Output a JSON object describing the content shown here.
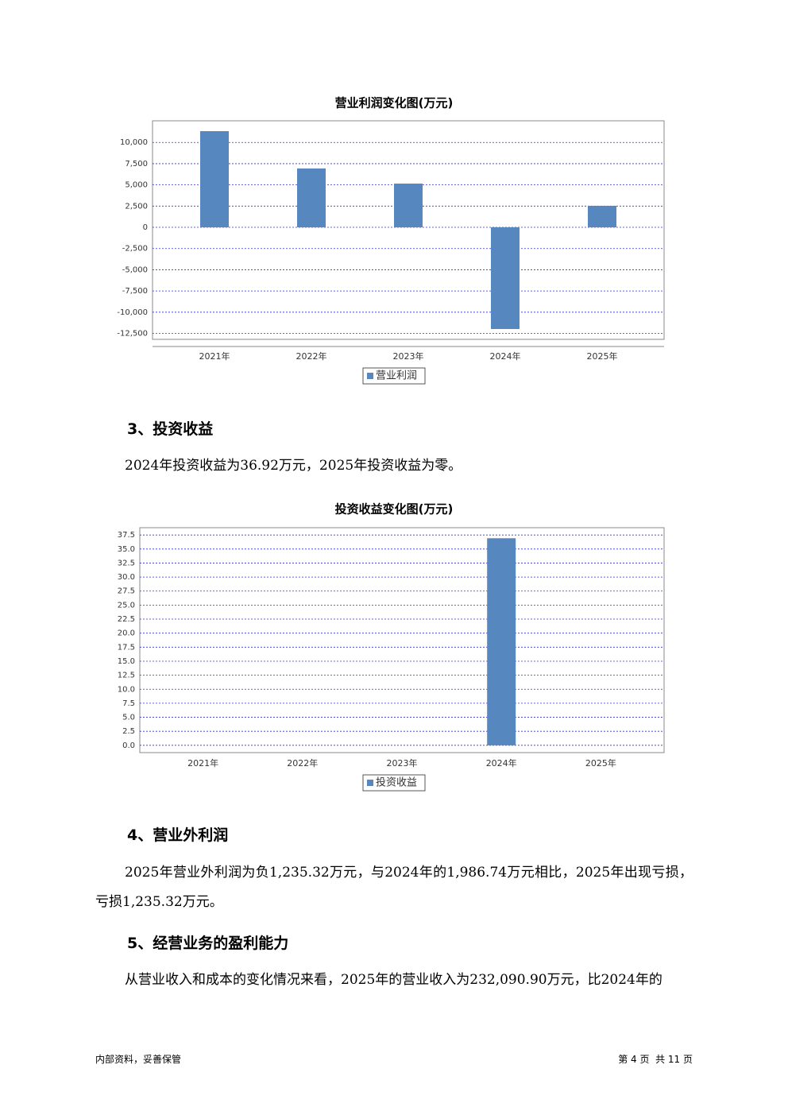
{
  "chart_data": [
    {
      "type": "bar",
      "title": "营业利润变化图(万元)",
      "categories": [
        "2021年",
        "2022年",
        "2023年",
        "2024年",
        "2025年"
      ],
      "series": [
        {
          "name": "营业利润",
          "color": "#5687bf",
          "values": [
            11330,
            6930,
            5150,
            -11985,
            2530
          ]
        }
      ],
      "ylim": [
        -13200,
        12550
      ],
      "yticks": [
        {
          "value": -12500,
          "label": "-12,500"
        },
        {
          "value": -10000,
          "label": "-10,000"
        },
        {
          "value": -7500,
          "label": "-7,500"
        },
        {
          "value": -5000,
          "label": "-5,000"
        },
        {
          "value": -2500,
          "label": "-2,500"
        },
        0,
        {
          "value": 2500,
          "label": "2,500"
        },
        {
          "value": 5000,
          "label": "5,000"
        },
        {
          "value": 7500,
          "label": "7,500"
        },
        {
          "value": 10000,
          "label": "10,000"
        }
      ],
      "grid": true
    },
    {
      "type": "bar",
      "title": "投资收益变化图(万元)",
      "categories": [
        "2021年",
        "2022年",
        "2023年",
        "2024年",
        "2025年"
      ],
      "series": [
        {
          "name": "投资收益",
          "color": "#5687bf",
          "values": [
            0,
            0,
            0,
            36.92,
            0
          ]
        }
      ],
      "ylim": [
        -1.3,
        38.8
      ],
      "yticks": [
        {
          "value": 0,
          "label": "0.0"
        },
        2.5,
        {
          "value": 5,
          "label": "5.0"
        },
        7.5,
        {
          "value": 10,
          "label": "10.0"
        },
        12.5,
        {
          "value": 15,
          "label": "15.0"
        },
        17.5,
        {
          "value": 20,
          "label": "20.0"
        },
        22.5,
        {
          "value": 25,
          "label": "25.0"
        },
        27.5,
        {
          "value": 30,
          "label": "30.0"
        },
        32.5,
        {
          "value": 35,
          "label": "35.0"
        },
        37.5
      ],
      "grid": true
    }
  ],
  "sections": [
    {
      "heading": "3、投资收益",
      "paragraphs": [
        "2024年投资收益为36.92万元，2025年投资收益为零。"
      ]
    },
    {
      "heading": "4、营业外利润",
      "paragraphs": [
        "2025年营业外利润为负1,235.32万元，与2024年的1,986.74万元相比，2025年出现亏损，亏损1,235.32万元。"
      ]
    },
    {
      "heading": "5、经营业务的盈利能力",
      "paragraphs": [
        "从营业收入和成本的变化情况来看，2025年的营业收入为232,090.90万元，比2024年的"
      ]
    }
  ],
  "footer": {
    "left": "内部资料，妥善保管",
    "right": "第 4 页  共 11 页"
  }
}
